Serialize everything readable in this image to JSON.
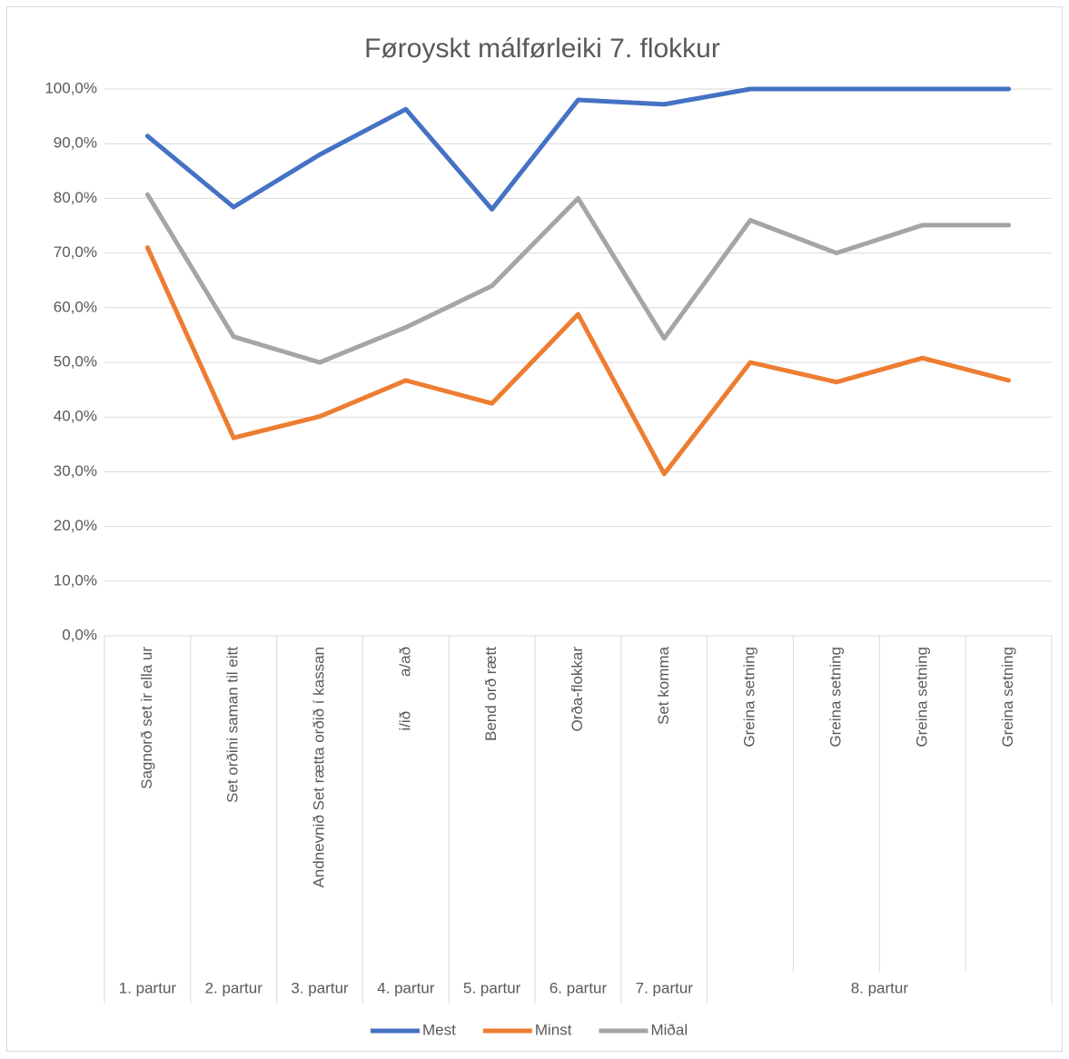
{
  "chart_data": {
    "type": "line",
    "title": "Føroyskt málførleiki 7. flokkur",
    "categories": [
      "Sagnorð set ir ella ur",
      "Set orðini saman til eitt",
      "Andnevnið Set rætta orðið í kassan",
      "i/ið        a/að",
      "Bend orð rætt",
      "Orða-flokkar",
      "Set komma",
      "Greina setning",
      "Greina setning",
      "Greina setning",
      "Greina setning"
    ],
    "category_groups": [
      {
        "label": "1. partur",
        "count": 1
      },
      {
        "label": "2. partur",
        "count": 1
      },
      {
        "label": "3. partur",
        "count": 1
      },
      {
        "label": "4. partur",
        "count": 1
      },
      {
        "label": "5. partur",
        "count": 1
      },
      {
        "label": "6. partur",
        "count": 1
      },
      {
        "label": "7. partur",
        "count": 1
      },
      {
        "label": "8. partur",
        "count": 4
      }
    ],
    "series": [
      {
        "name": "Mest",
        "color": "#4472c4",
        "values": [
          91.4,
          78.4,
          88,
          96.3,
          78,
          98,
          97.2,
          100,
          100,
          100,
          100
        ]
      },
      {
        "name": "Minst",
        "color": "#ed7d31",
        "values": [
          71,
          36.2,
          40.1,
          46.7,
          42.5,
          58.8,
          29.6,
          50,
          46.4,
          50.8,
          46.7
        ]
      },
      {
        "name": "Miðal",
        "color": "#a5a5a5",
        "values": [
          80.7,
          54.7,
          50,
          56.4,
          64,
          80,
          54.4,
          76,
          70,
          75.1,
          75.1
        ]
      }
    ],
    "ylim": [
      0,
      100
    ],
    "yticks": [
      {
        "value": 0,
        "label": "0,0%"
      },
      {
        "value": 10,
        "label": "10,0%"
      },
      {
        "value": 20,
        "label": "20,0%"
      },
      {
        "value": 30,
        "label": "30,0%"
      },
      {
        "value": 40,
        "label": "40,0%"
      },
      {
        "value": 50,
        "label": "50,0%"
      },
      {
        "value": 60,
        "label": "60,0%"
      },
      {
        "value": 70,
        "label": "70,0%"
      },
      {
        "value": 80,
        "label": "80,0%"
      },
      {
        "value": 90,
        "label": "90,0%"
      },
      {
        "value": 100,
        "label": "100,0%"
      }
    ],
    "grid": true,
    "legend": "bottom"
  }
}
